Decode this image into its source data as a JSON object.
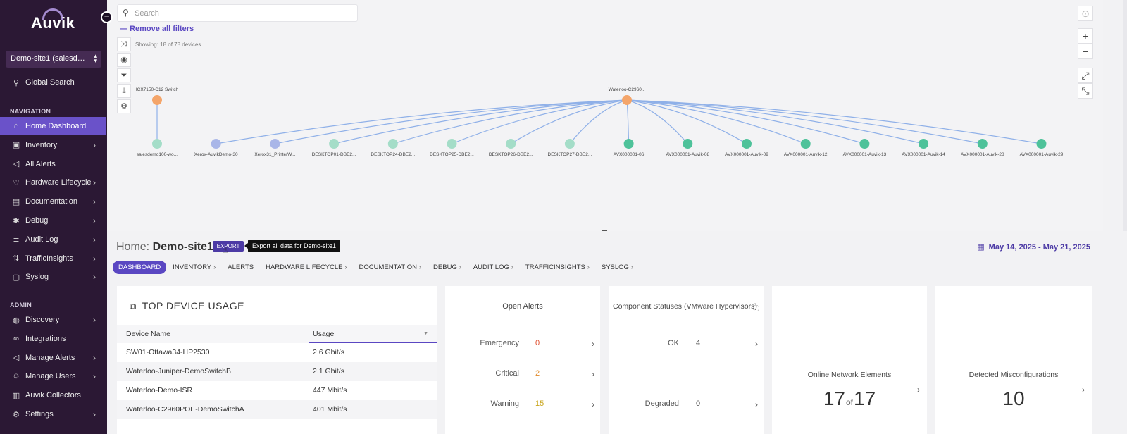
{
  "sidebar": {
    "logo": "Auvik",
    "site_selector": "Demo-site1 (salesdemo...",
    "global_search": "Global Search",
    "nav_heading": "NAVIGATION",
    "admin_heading": "ADMIN",
    "nav_items": [
      {
        "label": "Home Dashboard",
        "icon": "home-icon"
      },
      {
        "label": "Inventory",
        "icon": "box-icon"
      },
      {
        "label": "All Alerts",
        "icon": "megaphone-icon"
      },
      {
        "label": "Hardware Lifecycle",
        "icon": "heart-icon"
      },
      {
        "label": "Documentation",
        "icon": "book-icon"
      },
      {
        "label": "Debug",
        "icon": "bug-icon"
      },
      {
        "label": "Audit Log",
        "icon": "log-icon"
      },
      {
        "label": "TrafficInsights",
        "icon": "traffic-icon"
      },
      {
        "label": "Syslog",
        "icon": "syslog-icon"
      }
    ],
    "admin_items": [
      {
        "label": "Discovery",
        "icon": "globe-icon"
      },
      {
        "label": "Integrations",
        "icon": "link-icon"
      },
      {
        "label": "Manage Alerts",
        "icon": "megaphone-icon"
      },
      {
        "label": "Manage Users",
        "icon": "users-icon"
      },
      {
        "label": "Auvik Collectors",
        "icon": "collector-icon"
      },
      {
        "label": "Settings",
        "icon": "gear-icon"
      }
    ]
  },
  "map": {
    "search_placeholder": "Search",
    "remove_filters": "Remove all filters",
    "showing": "Showing: 18 of 78 devices",
    "zoom_in": "+",
    "zoom_out": "−",
    "hubs": [
      {
        "label": "ICX7150-C12 Switch"
      },
      {
        "label": "Waterloo-C2960..."
      }
    ],
    "nodes": [
      {
        "label": "salesdemo100-wo...",
        "kind": "switch"
      },
      {
        "label": "Xerox-AuvikDemo-30",
        "kind": "printer"
      },
      {
        "label": "Xerox31_PrinterW...",
        "kind": "printer"
      },
      {
        "label": "DESKTOP01-DBE2...",
        "kind": "desktop"
      },
      {
        "label": "DESKTOP24-DBE2...",
        "kind": "desktop"
      },
      {
        "label": "DESKTOP25-DBE2...",
        "kind": "desktop"
      },
      {
        "label": "DESKTOP26-DBE2...",
        "kind": "desktop"
      },
      {
        "label": "DESKTOP27-DBE2...",
        "kind": "desktop"
      },
      {
        "label": "AVX000001-06",
        "kind": "phone"
      },
      {
        "label": "AVX000001-Auvik-08",
        "kind": "phone"
      },
      {
        "label": "AVX000001-Auvik-09",
        "kind": "phone"
      },
      {
        "label": "AVX000001-Auvik-12",
        "kind": "phone"
      },
      {
        "label": "AVX000001-Auvik-13",
        "kind": "phone"
      },
      {
        "label": "AVX000001-Auvik-14",
        "kind": "phone"
      },
      {
        "label": "AVX000001-Auvik-28",
        "kind": "phone"
      },
      {
        "label": "AVX000001-Auvik-29",
        "kind": "phone"
      }
    ],
    "colors": {
      "hub": "#f4a56a",
      "printer": "#a9b6e8",
      "desktop": "#a4ddc8",
      "phone": "#4ec29a",
      "link": "#8fb0e8"
    }
  },
  "header": {
    "title_prefix": "Home:",
    "site_name": "Demo-site1",
    "export_label": "EXPORT",
    "export_tooltip": "Export all data for Demo-site1",
    "date_range": "May 14, 2025 - May 21, 2025"
  },
  "tabs": [
    {
      "label": "DASHBOARD",
      "active": true,
      "has_chevron": false
    },
    {
      "label": "INVENTORY",
      "active": false,
      "has_chevron": true
    },
    {
      "label": "ALERTS",
      "active": false,
      "has_chevron": false
    },
    {
      "label": "HARDWARE LIFECYCLE",
      "active": false,
      "has_chevron": true
    },
    {
      "label": "DOCUMENTATION",
      "active": false,
      "has_chevron": true
    },
    {
      "label": "DEBUG",
      "active": false,
      "has_chevron": true
    },
    {
      "label": "AUDIT LOG",
      "active": false,
      "has_chevron": true
    },
    {
      "label": "TRAFFICINSIGHTS",
      "active": false,
      "has_chevron": true
    },
    {
      "label": "SYSLOG",
      "active": false,
      "has_chevron": true
    }
  ],
  "top_device_usage": {
    "title": "TOP DEVICE USAGE",
    "columns": [
      "Device Name",
      "Usage"
    ],
    "rows": [
      [
        "SW01-Ottawa34-HP2530",
        "2.6 Gbit/s"
      ],
      [
        "Waterloo-Juniper-DemoSwitchB",
        "2.1 Gbit/s"
      ],
      [
        "Waterloo-Demo-ISR",
        "447 Mbit/s"
      ],
      [
        "Waterloo-C2960POE-DemoSwitchA",
        "401 Mbit/s"
      ]
    ]
  },
  "open_alerts": {
    "title": "Open Alerts",
    "rows": [
      {
        "label": "Emergency",
        "value": "0"
      },
      {
        "label": "Critical",
        "value": "2"
      },
      {
        "label": "Warning",
        "value": "15"
      }
    ]
  },
  "component_statuses": {
    "title": "Component Statuses (VMware Hypervisors)",
    "rows": [
      {
        "label": "OK",
        "value": "4"
      },
      {
        "label": "Degraded",
        "value": "0"
      }
    ]
  },
  "online_elements": {
    "label": "Online Network Elements",
    "value": "17",
    "of": "of",
    "total": "17"
  },
  "misconfigurations": {
    "label": "Detected Misconfigurations",
    "value": "10"
  }
}
